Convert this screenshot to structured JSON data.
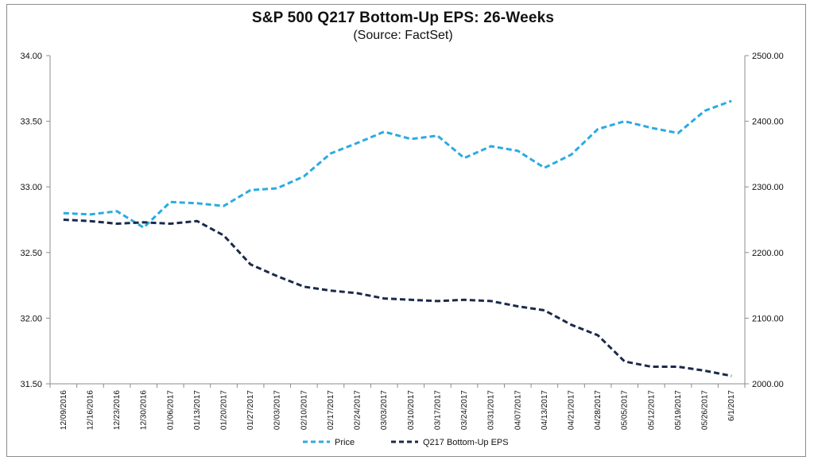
{
  "chart_data": {
    "type": "line",
    "title": "S&P 500 Q217 Bottom-Up EPS: 26-Weeks",
    "subtitle": "(Source: FactSet)",
    "categories": [
      "12/09/2016",
      "12/16/2016",
      "12/23/2016",
      "12/30/2016",
      "01/06/2017",
      "01/13/2017",
      "01/20/2017",
      "01/27/2017",
      "02/03/2017",
      "02/10/2017",
      "02/17/2017",
      "02/24/2017",
      "03/03/2017",
      "03/10/2017",
      "03/17/2017",
      "03/24/2017",
      "03/31/2017",
      "04/07/2017",
      "04/13/2017",
      "04/21/2017",
      "04/28/2017",
      "05/05/2017",
      "05/12/2017",
      "05/19/2017",
      "05/26/2017",
      "6/1/2017"
    ],
    "series": [
      {
        "name": "Price",
        "axis": "right",
        "color": "#2aabe2",
        "style": "dashed",
        "values": [
          2260,
          2258,
          2263,
          2238,
          2277,
          2275,
          2271,
          2295,
          2298,
          2316,
          2351,
          2367,
          2384,
          2373,
          2378,
          2344,
          2362,
          2355,
          2329,
          2349,
          2388,
          2400,
          2390,
          2382,
          2416,
          2431
        ]
      },
      {
        "name": "Q217 Bottom-Up EPS",
        "axis": "left",
        "color": "#1b2a4a",
        "style": "dashed",
        "values": [
          32.75,
          32.74,
          32.72,
          32.73,
          32.72,
          32.74,
          32.63,
          32.41,
          32.32,
          32.24,
          32.21,
          32.19,
          32.15,
          32.14,
          32.13,
          32.14,
          32.13,
          32.09,
          32.06,
          31.95,
          31.87,
          31.67,
          31.63,
          31.63,
          31.6,
          31.56
        ]
      }
    ],
    "y_left": {
      "min": 31.5,
      "max": 34.0,
      "ticks": [
        "34.00",
        "33.50",
        "33.00",
        "32.50",
        "32.00",
        "31.50"
      ]
    },
    "y_right": {
      "min": 2000,
      "max": 2500,
      "ticks": [
        "2500.00",
        "2400.00",
        "2300.00",
        "2200.00",
        "2100.00",
        "2000.00"
      ]
    },
    "grid": false,
    "legend_position": "bottom-center"
  }
}
